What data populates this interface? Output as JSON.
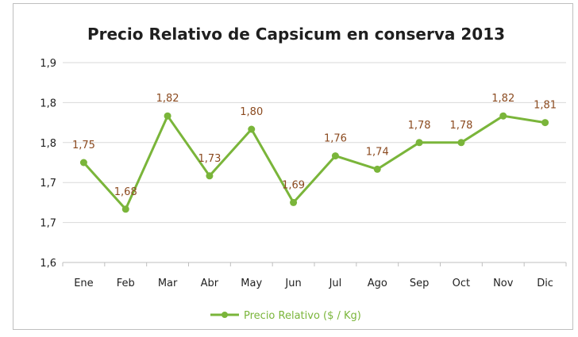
{
  "chart_data": {
    "type": "line",
    "title": "Precio Relativo de Capsicum en conserva 2013",
    "categories": [
      "Ene",
      "Feb",
      "Mar",
      "Abr",
      "May",
      "Jun",
      "Jul",
      "Ago",
      "Sep",
      "Oct",
      "Nov",
      "Dic"
    ],
    "series": [
      {
        "name": "Precio Relativo ($ / Kg)",
        "values": [
          1.75,
          1.68,
          1.82,
          1.73,
          1.8,
          1.69,
          1.76,
          1.74,
          1.78,
          1.78,
          1.82,
          1.81
        ],
        "labels": [
          "1,75",
          "1,68",
          "1,82",
          "1,73",
          "1,80",
          "1,69",
          "1,76",
          "1,74",
          "1,78",
          "1,78",
          "1,82",
          "1,81"
        ],
        "color": "#7ab53a"
      }
    ],
    "y_ticks": [
      "1,9",
      "1,8",
      "1,8",
      "1,7",
      "1,7",
      "1,6"
    ],
    "ylim": [
      1.6,
      1.9
    ],
    "grid": true,
    "legend_position": "bottom",
    "colors": {
      "line": "#7ab53a",
      "grid": "#d9d9d9",
      "label": "#8b4a1f"
    }
  }
}
